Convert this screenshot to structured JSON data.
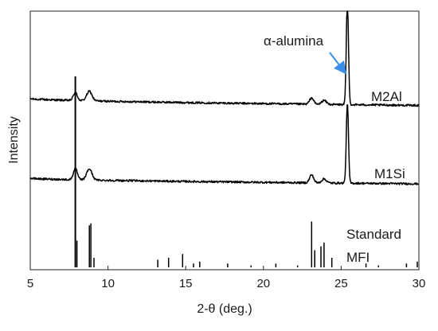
{
  "chart_data": {
    "type": "line",
    "xlabel": "2-θ (deg.)",
    "ylabel": "Intensity",
    "xlim": [
      5,
      30
    ],
    "x_ticks": [
      5,
      10,
      15,
      20,
      25,
      30
    ],
    "x_tick_labels": [
      "5",
      "10",
      "15",
      "20",
      "25",
      "30"
    ],
    "grid": false,
    "annotation": {
      "text": "α-alumina",
      "points_to_x": 25.4,
      "arrow_color": "#3a8ee6"
    },
    "series": [
      {
        "name": "M2Al",
        "color": "#000000",
        "baseline_start": 12,
        "baseline_end": 3.5,
        "noise": 1.2,
        "peaks": [
          {
            "x": 7.9,
            "h": 10,
            "w": 0.13
          },
          {
            "x": 8.8,
            "h": 12,
            "w": 0.17
          },
          {
            "x": 23.1,
            "h": 8,
            "w": 0.13
          },
          {
            "x": 23.9,
            "h": 5,
            "w": 0.15
          },
          {
            "x": 25.4,
            "h": 130,
            "w": 0.07
          }
        ]
      },
      {
        "name": "M1Si",
        "color": "#000000",
        "baseline_start": 12,
        "baseline_end": 5,
        "noise": 1.2,
        "peaks": [
          {
            "x": 7.9,
            "h": 14,
            "w": 0.13
          },
          {
            "x": 8.8,
            "h": 14,
            "w": 0.17
          },
          {
            "x": 23.1,
            "h": 10,
            "w": 0.13
          },
          {
            "x": 23.9,
            "h": 5,
            "w": 0.15
          },
          {
            "x": 25.4,
            "h": 100,
            "w": 0.07
          }
        ]
      },
      {
        "name": "Standard MFI",
        "color": "#000000",
        "type": "stick",
        "sticks": [
          [
            7.9,
            100
          ],
          [
            8.0,
            14
          ],
          [
            8.8,
            22
          ],
          [
            8.9,
            23
          ],
          [
            9.1,
            5
          ],
          [
            13.2,
            4
          ],
          [
            13.9,
            5
          ],
          [
            14.8,
            7
          ],
          [
            15.5,
            2
          ],
          [
            15.9,
            3
          ],
          [
            17.7,
            2
          ],
          [
            19.2,
            1
          ],
          [
            20.8,
            2
          ],
          [
            22.2,
            1
          ],
          [
            23.1,
            24
          ],
          [
            23.3,
            9
          ],
          [
            23.7,
            11
          ],
          [
            23.9,
            13
          ],
          [
            24.4,
            5
          ],
          [
            26.6,
            2
          ],
          [
            27.4,
            1
          ],
          [
            29.2,
            2
          ],
          [
            29.9,
            3
          ]
        ]
      }
    ],
    "series_labels": [
      "M2Al",
      "M1Si",
      "Standard",
      "MFI"
    ]
  }
}
